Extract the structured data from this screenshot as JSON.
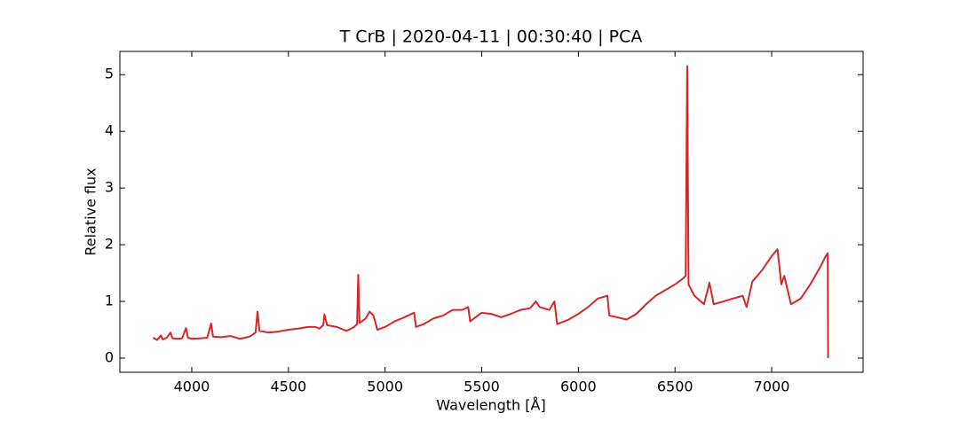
{
  "chart_data": {
    "type": "line",
    "title": "T CrB | 2020-04-11 | 00:30:40 | PCA",
    "x_label": "Wavelength [Å]",
    "y_label": "Relative flux",
    "xlim": [
      3628,
      7473
    ],
    "ylim": [
      -0.25,
      5.41
    ],
    "xticks": [
      4000,
      4500,
      5000,
      5500,
      6000,
      6500,
      7000
    ],
    "yticks": [
      0,
      1,
      2,
      3,
      4,
      5
    ],
    "x": [
      3800,
      3820,
      3840,
      3850,
      3870,
      3890,
      3900,
      3930,
      3950,
      3970,
      3980,
      4000,
      4050,
      4080,
      4100,
      4110,
      4150,
      4200,
      4250,
      4300,
      4330,
      4340,
      4350,
      4400,
      4450,
      4500,
      4550,
      4600,
      4640,
      4660,
      4680,
      4686,
      4700,
      4750,
      4800,
      4840,
      4855,
      4861,
      4868,
      4880,
      4900,
      4920,
      4940,
      4960,
      5000,
      5050,
      5100,
      5150,
      5160,
      5200,
      5250,
      5300,
      5350,
      5400,
      5430,
      5440,
      5500,
      5550,
      5600,
      5650,
      5700,
      5750,
      5780,
      5800,
      5850,
      5876,
      5890,
      5950,
      6000,
      6050,
      6100,
      6150,
      6160,
      6200,
      6250,
      6300,
      6350,
      6400,
      6450,
      6500,
      6540,
      6555,
      6563,
      6570,
      6600,
      6650,
      6678,
      6700,
      6750,
      6800,
      6850,
      6870,
      6900,
      6950,
      7000,
      7030,
      7050,
      7065,
      7100,
      7150,
      7200,
      7250,
      7280,
      7290,
      7292
    ],
    "series": [
      {
        "color": "#d62728",
        "values": [
          0.36,
          0.32,
          0.4,
          0.33,
          0.36,
          0.45,
          0.35,
          0.34,
          0.35,
          0.53,
          0.36,
          0.34,
          0.35,
          0.36,
          0.61,
          0.38,
          0.37,
          0.39,
          0.34,
          0.38,
          0.45,
          0.82,
          0.48,
          0.45,
          0.47,
          0.5,
          0.52,
          0.55,
          0.55,
          0.52,
          0.58,
          0.77,
          0.58,
          0.55,
          0.48,
          0.55,
          0.6,
          1.47,
          0.62,
          0.65,
          0.7,
          0.82,
          0.75,
          0.5,
          0.55,
          0.65,
          0.72,
          0.8,
          0.55,
          0.6,
          0.7,
          0.75,
          0.85,
          0.85,
          0.9,
          0.65,
          0.8,
          0.78,
          0.72,
          0.78,
          0.85,
          0.88,
          1.0,
          0.9,
          0.85,
          1.0,
          0.6,
          0.68,
          0.78,
          0.9,
          1.05,
          1.1,
          0.75,
          0.72,
          0.68,
          0.78,
          0.95,
          1.1,
          1.2,
          1.3,
          1.4,
          1.45,
          5.15,
          1.3,
          1.1,
          0.95,
          1.33,
          0.95,
          1.0,
          1.05,
          1.1,
          0.9,
          1.35,
          1.55,
          1.8,
          1.92,
          1.3,
          1.45,
          0.95,
          1.05,
          1.3,
          1.6,
          1.8,
          1.85,
          0.0
        ]
      }
    ]
  }
}
